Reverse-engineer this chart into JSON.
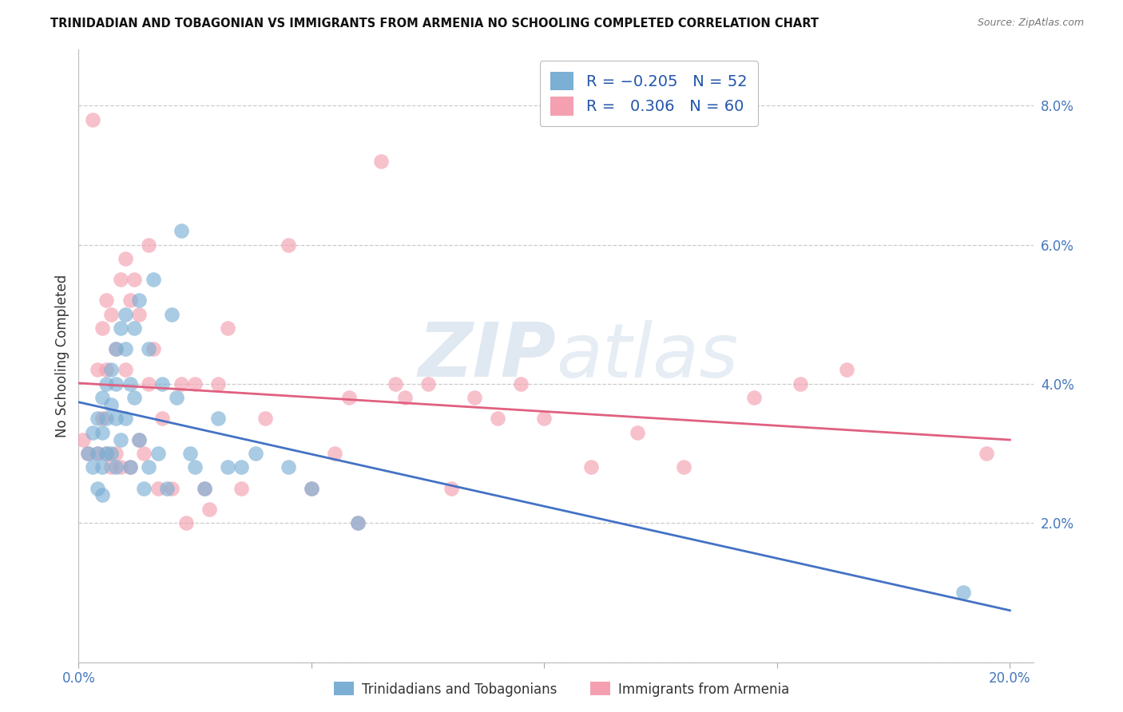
{
  "title": "TRINIDADIAN AND TOBAGONIAN VS IMMIGRANTS FROM ARMENIA NO SCHOOLING COMPLETED CORRELATION CHART",
  "source": "Source: ZipAtlas.com",
  "ylabel": "No Schooling Completed",
  "xlim": [
    0.0,
    0.205
  ],
  "ylim": [
    0.0,
    0.088
  ],
  "xticks": [
    0.0,
    0.05,
    0.1,
    0.15,
    0.2
  ],
  "yticks": [
    0.0,
    0.02,
    0.04,
    0.06,
    0.08
  ],
  "blue_R": -0.205,
  "blue_N": 52,
  "pink_R": 0.306,
  "pink_N": 60,
  "blue_color": "#7BAFD4",
  "pink_color": "#F4A0B0",
  "blue_line_color": "#4472C4",
  "pink_line_color": "#E06080",
  "watermark_zip": "ZIP",
  "watermark_atlas": "atlas",
  "legend_label_blue": "Trinidadians and Tobagonians",
  "legend_label_pink": "Immigrants from Armenia",
  "blue_scatter_x": [
    0.002,
    0.003,
    0.003,
    0.004,
    0.004,
    0.004,
    0.005,
    0.005,
    0.005,
    0.005,
    0.006,
    0.006,
    0.006,
    0.007,
    0.007,
    0.007,
    0.008,
    0.008,
    0.008,
    0.008,
    0.009,
    0.009,
    0.01,
    0.01,
    0.01,
    0.011,
    0.011,
    0.012,
    0.012,
    0.013,
    0.013,
    0.014,
    0.015,
    0.015,
    0.016,
    0.017,
    0.018,
    0.019,
    0.02,
    0.021,
    0.022,
    0.024,
    0.025,
    0.027,
    0.03,
    0.032,
    0.035,
    0.038,
    0.045,
    0.05,
    0.06,
    0.19
  ],
  "blue_scatter_y": [
    0.03,
    0.033,
    0.028,
    0.035,
    0.03,
    0.025,
    0.038,
    0.033,
    0.028,
    0.024,
    0.04,
    0.035,
    0.03,
    0.042,
    0.037,
    0.03,
    0.045,
    0.04,
    0.035,
    0.028,
    0.048,
    0.032,
    0.05,
    0.045,
    0.035,
    0.04,
    0.028,
    0.048,
    0.038,
    0.052,
    0.032,
    0.025,
    0.045,
    0.028,
    0.055,
    0.03,
    0.04,
    0.025,
    0.05,
    0.038,
    0.062,
    0.03,
    0.028,
    0.025,
    0.035,
    0.028,
    0.028,
    0.03,
    0.028,
    0.025,
    0.02,
    0.01
  ],
  "pink_scatter_x": [
    0.001,
    0.002,
    0.003,
    0.004,
    0.004,
    0.005,
    0.005,
    0.006,
    0.006,
    0.006,
    0.007,
    0.007,
    0.008,
    0.008,
    0.009,
    0.009,
    0.01,
    0.01,
    0.011,
    0.011,
    0.012,
    0.013,
    0.013,
    0.014,
    0.015,
    0.015,
    0.016,
    0.017,
    0.018,
    0.02,
    0.022,
    0.023,
    0.025,
    0.027,
    0.028,
    0.03,
    0.032,
    0.035,
    0.04,
    0.045,
    0.05,
    0.055,
    0.058,
    0.06,
    0.065,
    0.068,
    0.07,
    0.075,
    0.08,
    0.085,
    0.09,
    0.095,
    0.1,
    0.11,
    0.12,
    0.13,
    0.145,
    0.155,
    0.165,
    0.195
  ],
  "pink_scatter_y": [
    0.032,
    0.03,
    0.078,
    0.042,
    0.03,
    0.048,
    0.035,
    0.052,
    0.042,
    0.03,
    0.05,
    0.028,
    0.045,
    0.03,
    0.055,
    0.028,
    0.058,
    0.042,
    0.052,
    0.028,
    0.055,
    0.05,
    0.032,
    0.03,
    0.06,
    0.04,
    0.045,
    0.025,
    0.035,
    0.025,
    0.04,
    0.02,
    0.04,
    0.025,
    0.022,
    0.04,
    0.048,
    0.025,
    0.035,
    0.06,
    0.025,
    0.03,
    0.038,
    0.02,
    0.072,
    0.04,
    0.038,
    0.04,
    0.025,
    0.038,
    0.035,
    0.04,
    0.035,
    0.028,
    0.033,
    0.028,
    0.038,
    0.04,
    0.042,
    0.03
  ]
}
